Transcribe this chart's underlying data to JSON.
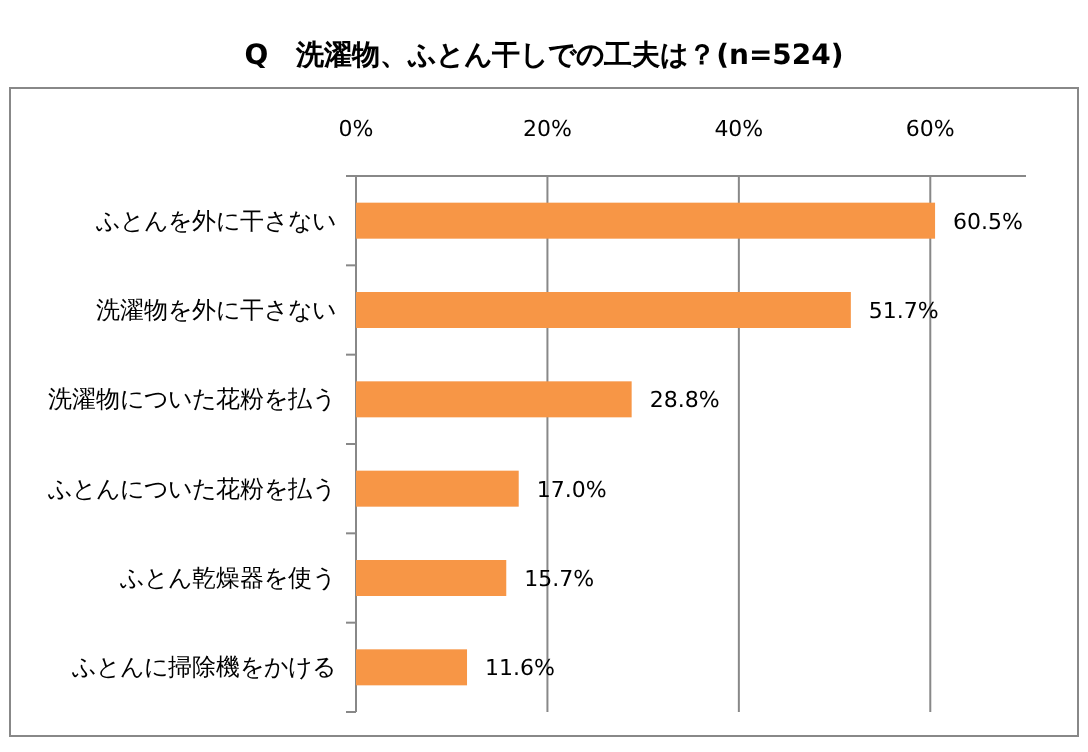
{
  "chart_data": {
    "type": "bar",
    "orientation": "horizontal",
    "title": "Q　洗濯物、ふとん干しでの工夫は？(n=524)",
    "categories": [
      "ふとんを外に干さない",
      "洗濯物を外に干さない",
      "洗濯物についた花粉を払う",
      "ふとんについた花粉を払う",
      "ふとん乾燥器を使う",
      "ふとんに掃除機をかける"
    ],
    "values": [
      60.5,
      51.7,
      28.8,
      17.0,
      15.7,
      11.6
    ],
    "value_labels": [
      "60.5%",
      "51.7%",
      "28.8%",
      "17.0%",
      "15.7%",
      "11.6%"
    ],
    "color": "#f79646",
    "xlim": [
      0,
      70
    ],
    "xticks": [
      {
        "value": 0,
        "label": "0%"
      },
      {
        "value": 20,
        "label": "20%"
      },
      {
        "value": 40,
        "label": "40%"
      },
      {
        "value": 60,
        "label": "60%"
      }
    ],
    "grid": "x"
  }
}
